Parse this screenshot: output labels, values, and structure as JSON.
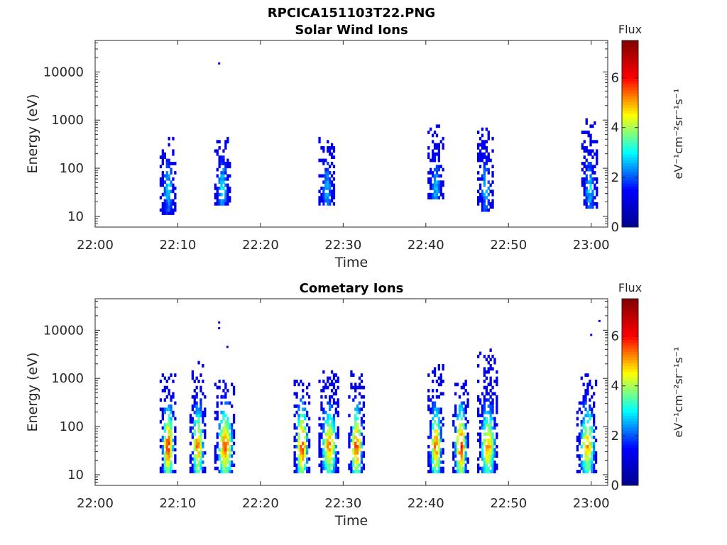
{
  "figure_title": "RPCICA151103T22.PNG",
  "colormap": {
    "name": "jet",
    "stops": [
      "#00008f",
      "#0000ff",
      "#00ffff",
      "#ffff00",
      "#ff0000",
      "#800000"
    ]
  },
  "chart_data": [
    {
      "type": "heatmap",
      "title": "Solar Wind Ions",
      "xlabel": "Time",
      "ylabel": "Energy (eV)",
      "xlim": [
        "22:00",
        "23:02"
      ],
      "x_ticks": [
        "22:00",
        "22:10",
        "22:20",
        "22:30",
        "22:40",
        "22:50",
        "23:00"
      ],
      "ylim": [
        6,
        45000
      ],
      "yscale": "log",
      "y_ticks": [
        "10",
        "100",
        "1000",
        "10000"
      ],
      "y_tick_values": [
        10,
        100,
        1000,
        10000
      ],
      "colorbar": {
        "label_top": "Flux",
        "label_side": "eV⁻¹cm⁻²sr⁻¹s⁻¹",
        "ticks": [
          "0",
          "2",
          "4",
          "6"
        ],
        "range": [
          0,
          7.5
        ]
      },
      "bursts": [
        {
          "t_start": 22.13,
          "t_end": 22.16,
          "e_min": 11,
          "e_max": 550,
          "flux_max": 3.2
        },
        {
          "t_start": 22.24,
          "t_end": 22.27,
          "e_min": 16,
          "e_max": 420,
          "flux_max": 3.3
        },
        {
          "t_start": 22.45,
          "t_end": 22.48,
          "e_min": 17,
          "e_max": 500,
          "flux_max": 3.0
        },
        {
          "t_start": 22.67,
          "t_end": 22.7,
          "e_min": 22,
          "e_max": 760,
          "flux_max": 3.1
        },
        {
          "t_start": 22.77,
          "t_end": 22.8,
          "e_min": 12,
          "e_max": 680,
          "flux_max": 3.0
        },
        {
          "t_start": 22.98,
          "t_end": 23.01,
          "e_min": 15,
          "e_max": 1100,
          "flux_max": 3.2
        }
      ],
      "isolated_points": [
        {
          "t": "22:15",
          "energy": 15000,
          "flux": 1.3
        }
      ]
    },
    {
      "type": "heatmap",
      "title": "Cometary Ions",
      "xlabel": "Time",
      "ylabel": "Energy (eV)",
      "xlim": [
        "22:00",
        "23:02"
      ],
      "x_ticks": [
        "22:00",
        "22:10",
        "22:20",
        "22:30",
        "22:40",
        "22:50",
        "23:00"
      ],
      "ylim": [
        6,
        45000
      ],
      "yscale": "log",
      "y_ticks": [
        "10",
        "100",
        "1000",
        "10000"
      ],
      "y_tick_values": [
        10,
        100,
        1000,
        10000
      ],
      "colorbar": {
        "label_top": "Flux",
        "label_side": "eV⁻¹cm⁻²sr⁻¹s⁻¹",
        "ticks": [
          "0",
          "2",
          "4",
          "6"
        ],
        "range": [
          0,
          7.5
        ]
      },
      "bursts": [
        {
          "t_start": 22.13,
          "t_end": 22.16,
          "e_min": 11,
          "e_max": 1800,
          "flux_max": 6.2
        },
        {
          "t_start": 22.19,
          "t_end": 22.22,
          "e_min": 11,
          "e_max": 2200,
          "flux_max": 5.8
        },
        {
          "t_start": 22.24,
          "t_end": 22.28,
          "e_min": 11,
          "e_max": 1000,
          "flux_max": 6.0
        },
        {
          "t_start": 22.4,
          "t_end": 22.43,
          "e_min": 11,
          "e_max": 900,
          "flux_max": 6.3
        },
        {
          "t_start": 22.45,
          "t_end": 22.49,
          "e_min": 11,
          "e_max": 1400,
          "flux_max": 5.6
        },
        {
          "t_start": 22.51,
          "t_end": 22.54,
          "e_min": 11,
          "e_max": 1400,
          "flux_max": 6.1
        },
        {
          "t_start": 22.67,
          "t_end": 22.7,
          "e_min": 11,
          "e_max": 1900,
          "flux_max": 5.9
        },
        {
          "t_start": 22.72,
          "t_end": 22.75,
          "e_min": 11,
          "e_max": 900,
          "flux_max": 6.4
        },
        {
          "t_start": 22.77,
          "t_end": 22.81,
          "e_min": 11,
          "e_max": 4200,
          "flux_max": 5.5
        },
        {
          "t_start": 22.97,
          "t_end": 23.01,
          "e_min": 11,
          "e_max": 1300,
          "flux_max": 5.4
        }
      ],
      "isolated_points": [
        {
          "t": "22:15",
          "energy": 14500,
          "flux": 1.3
        },
        {
          "t": "22:15",
          "energy": 11000,
          "flux": 1.3
        },
        {
          "t": "22:16",
          "energy": 4500,
          "flux": 1.3
        },
        {
          "t": "23:01",
          "energy": 15500,
          "flux": 1.3
        },
        {
          "t": "23:00",
          "energy": 8000,
          "flux": 1.3
        }
      ]
    }
  ]
}
